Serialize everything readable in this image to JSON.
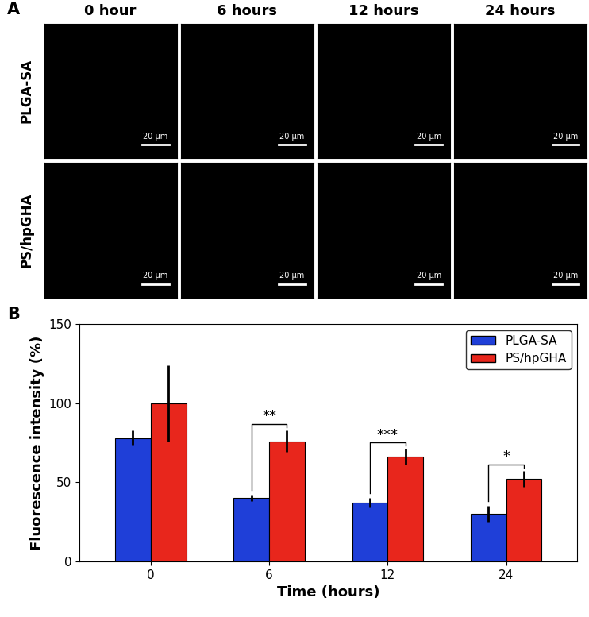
{
  "panel_a": {
    "label": "A",
    "columns": [
      "0 hour",
      "6 hours",
      "12 hours",
      "24 hours"
    ],
    "rows": [
      "PLGA-SA",
      "PS/hpGHA"
    ],
    "scale_bar": "20 µm"
  },
  "panel_b": {
    "label": "B"
  },
  "chart_data": {
    "type": "bar",
    "x_label": "Time (hours)",
    "y_label": "Fluorescence intensity (%)",
    "categories": [
      "0",
      "6",
      "12",
      "24"
    ],
    "series": [
      {
        "name": "PLGA-SA",
        "color": "#1f3fd8",
        "values": [
          78,
          40,
          37,
          30
        ],
        "errors": [
          5,
          2,
          3,
          5
        ]
      },
      {
        "name": "PS/hpGHA",
        "color": "#e8261c",
        "values": [
          100,
          76,
          66,
          52
        ],
        "errors": [
          24,
          7,
          5,
          5
        ]
      }
    ],
    "significance": [
      {
        "category": "6",
        "label": "**"
      },
      {
        "category": "12",
        "label": "***"
      },
      {
        "category": "24",
        "label": "*"
      }
    ],
    "ylim": [
      0,
      150
    ],
    "yticks": [
      0,
      50,
      100,
      150
    ],
    "legend": "upper right",
    "grid": false
  }
}
